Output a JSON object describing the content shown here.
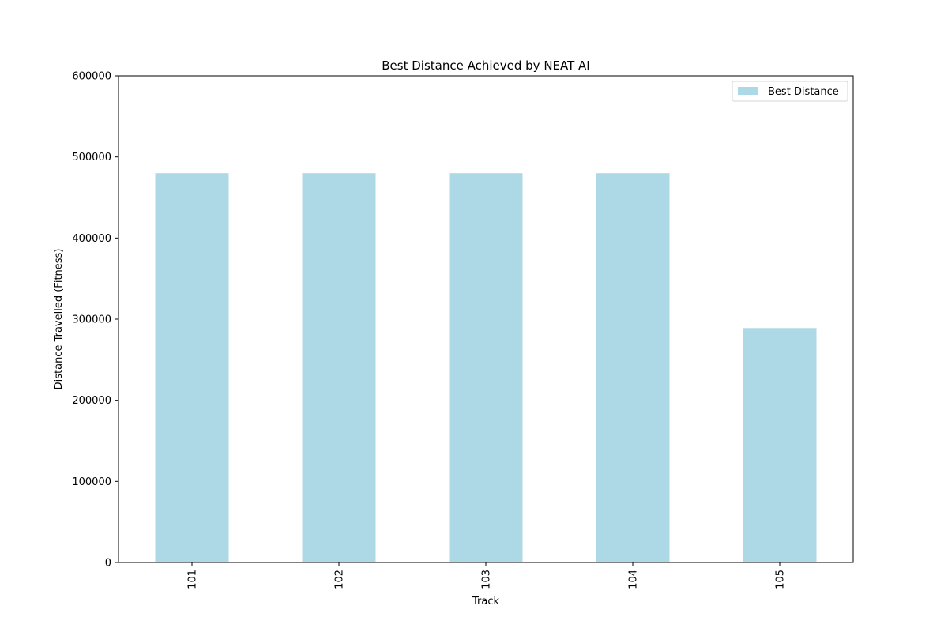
{
  "chart_data": {
    "type": "bar",
    "title": "Best Distance Achieved by NEAT AI",
    "xlabel": "Track",
    "ylabel": "Distance Travelled (Fitness)",
    "categories": [
      "101",
      "102",
      "103",
      "104",
      "105"
    ],
    "series": [
      {
        "name": "Best Distance",
        "values": [
          480000,
          480000,
          480000,
          480000,
          289000
        ]
      }
    ],
    "ylim": [
      0,
      600000
    ],
    "yticks": [
      "0",
      "100000",
      "200000",
      "300000",
      "400000",
      "500000",
      "600000"
    ],
    "grid": false,
    "legend_position": "top-right",
    "bar_color": "#add8e6"
  }
}
